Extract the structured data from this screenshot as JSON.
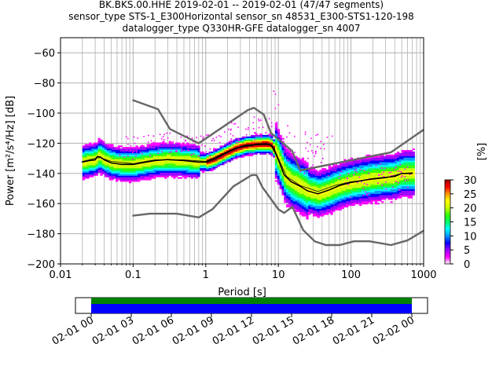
{
  "chart_data": {
    "type": "heatmap",
    "title_lines": [
      "BK.BKS.00.HHE   2019-02-01 -- 2019-02-01  (47/47 segments)",
      "sensor_type STS-1_E300Horizontal sensor_sn 48531_E300-STS1-120-198",
      "datalogger_type Q330HR-GFE datalogger_sn 4007"
    ],
    "xlabel": "Period [s]",
    "ylabel": "Power [m²/s⁴/Hz] [dB]",
    "x_scale": "log",
    "xlim": [
      0.01,
      1000
    ],
    "ylim": [
      -200,
      -50
    ],
    "x_ticks": [
      {
        "value": 0.01,
        "label": "0.01"
      },
      {
        "value": 0.1,
        "label": "0.1"
      },
      {
        "value": 1,
        "label": "1"
      },
      {
        "value": 10,
        "label": "10"
      },
      {
        "value": 100,
        "label": "100"
      },
      {
        "value": 1000,
        "label": "1000"
      }
    ],
    "y_ticks": [
      {
        "value": -60,
        "label": "−60"
      },
      {
        "value": -80,
        "label": "−80"
      },
      {
        "value": -100,
        "label": "−100"
      },
      {
        "value": -120,
        "label": "−120"
      },
      {
        "value": -140,
        "label": "−140"
      },
      {
        "value": -160,
        "label": "−160"
      },
      {
        "value": -180,
        "label": "−180"
      },
      {
        "value": -200,
        "label": "−200"
      }
    ],
    "grid": true,
    "colorbar": {
      "label": "[%]",
      "range": [
        0,
        30
      ],
      "ticks": [
        {
          "value": 0,
          "label": "0"
        },
        {
          "value": 5,
          "label": "5"
        },
        {
          "value": 10,
          "label": "10"
        },
        {
          "value": 15,
          "label": "15"
        },
        {
          "value": 20,
          "label": "20"
        },
        {
          "value": 25,
          "label": "25"
        },
        {
          "value": 30,
          "label": "30"
        }
      ],
      "colors": [
        "#ffffff",
        "#ff00ff",
        "#9900ff",
        "#0000ff",
        "#0099ff",
        "#00ffff",
        "#00ff66",
        "#33ff00",
        "#ccff00",
        "#ffff00",
        "#ff9900",
        "#ff0000",
        "#990000"
      ]
    },
    "series": [
      {
        "name": "high noise model",
        "color": "#666666",
        "points": [
          [
            0.1,
            -91.5
          ],
          [
            0.22,
            -97.4
          ],
          [
            0.32,
            -110.5
          ],
          [
            0.8,
            -120
          ],
          [
            3.8,
            -98
          ],
          [
            4.6,
            -96.5
          ],
          [
            6.3,
            -101
          ],
          [
            7.9,
            -113.2
          ],
          [
            15.4,
            -125
          ],
          [
            20,
            -138
          ],
          [
            354.8,
            -126
          ],
          [
            1000,
            -111
          ]
        ]
      },
      {
        "name": "low noise model",
        "color": "#666666",
        "points": [
          [
            0.1,
            -168
          ],
          [
            0.17,
            -166.7
          ],
          [
            0.4,
            -166.7
          ],
          [
            0.8,
            -169.2
          ],
          [
            1.24,
            -163.7
          ],
          [
            2.4,
            -148.6
          ],
          [
            4.3,
            -141.1
          ],
          [
            5,
            -141.1
          ],
          [
            6,
            -149
          ],
          [
            10,
            -163.8
          ],
          [
            12,
            -166.2
          ],
          [
            15.6,
            -162.1
          ],
          [
            21.9,
            -177.5
          ],
          [
            31.6,
            -185
          ],
          [
            45,
            -187.5
          ],
          [
            70,
            -187.5
          ],
          [
            110,
            -185
          ],
          [
            180,
            -185
          ],
          [
            354.8,
            -187.5
          ],
          [
            600,
            -184.4
          ],
          [
            1000,
            -178
          ]
        ]
      },
      {
        "name": "mean",
        "color": "#000000",
        "points": [
          [
            0.02,
            -132.5
          ],
          [
            0.025,
            -131.5
          ],
          [
            0.03,
            -131
          ],
          [
            0.032,
            -128.8
          ],
          [
            0.035,
            -129
          ],
          [
            0.04,
            -131
          ],
          [
            0.05,
            -133
          ],
          [
            0.07,
            -134
          ],
          [
            0.1,
            -134
          ],
          [
            0.15,
            -132.5
          ],
          [
            0.2,
            -131.5
          ],
          [
            0.3,
            -130.8
          ],
          [
            0.5,
            -131.5
          ],
          [
            0.8,
            -132.5
          ],
          [
            1,
            -132.5
          ],
          [
            1.3,
            -130.5
          ],
          [
            1.8,
            -127
          ],
          [
            2.5,
            -123.5
          ],
          [
            3.5,
            -121.5
          ],
          [
            5,
            -120.8
          ],
          [
            7,
            -120.5
          ],
          [
            8,
            -121.5
          ],
          [
            9,
            -126
          ],
          [
            10,
            -131
          ],
          [
            12,
            -141
          ],
          [
            15,
            -145.5
          ],
          [
            20,
            -148.5
          ],
          [
            25,
            -151.5
          ],
          [
            35,
            -153.5
          ],
          [
            50,
            -151
          ],
          [
            70,
            -148
          ],
          [
            100,
            -146
          ],
          [
            200,
            -143.5
          ],
          [
            400,
            -142
          ],
          [
            500,
            -140
          ],
          [
            700,
            -140
          ]
        ]
      },
      {
        "name": "mode",
        "color": "#000000",
        "points": [
          [
            0.02,
            -132
          ],
          [
            0.03,
            -130
          ],
          [
            0.035,
            -129.5
          ],
          [
            0.05,
            -132
          ],
          [
            0.1,
            -133.5
          ],
          [
            0.2,
            -131
          ],
          [
            0.5,
            -131
          ],
          [
            1,
            -132
          ],
          [
            2,
            -125.5
          ],
          [
            3,
            -122.5
          ],
          [
            5,
            -121
          ],
          [
            7,
            -120.5
          ],
          [
            8.5,
            -122
          ],
          [
            10,
            -130
          ],
          [
            13,
            -142
          ],
          [
            20,
            -148
          ],
          [
            35,
            -152
          ],
          [
            60,
            -148
          ],
          [
            100,
            -145.5
          ],
          [
            300,
            -143
          ],
          [
            500,
            -140
          ],
          [
            700,
            -139.5
          ]
        ]
      }
    ]
  },
  "timeline": {
    "segments": 47,
    "total_segments": 47,
    "coverage_colors": [
      "#008000",
      "#0000ff"
    ],
    "ticks": [
      {
        "hour": 0,
        "label": "02-01 00"
      },
      {
        "hour": 3,
        "label": "02-01 03"
      },
      {
        "hour": 6,
        "label": "02-01 06"
      },
      {
        "hour": 9,
        "label": "02-01 09"
      },
      {
        "hour": 12,
        "label": "02-01 12"
      },
      {
        "hour": 15,
        "label": "02-01 15"
      },
      {
        "hour": 18,
        "label": "02-01 18"
      },
      {
        "hour": 21,
        "label": "02-01 21"
      },
      {
        "hour": 24,
        "label": "02-02 00"
      }
    ]
  }
}
